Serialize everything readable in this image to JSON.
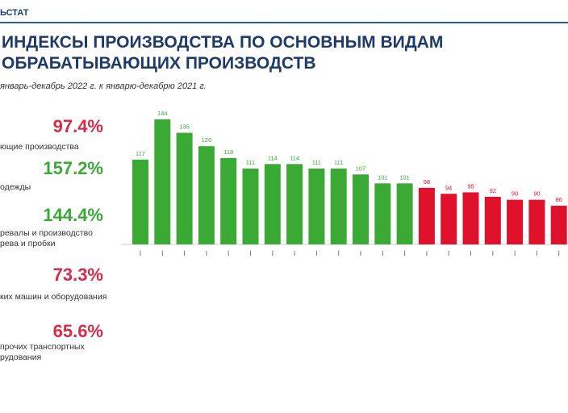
{
  "brand": "ЬСТАТ",
  "title_lines": [
    "ИНДЕКСЫ ПРОИЗВОДСТВА ПО ОСНОВНЫМ ВИДАМ",
    "ОБРАБАТЫВАЮЩИХ ПРОИЗВОДСТВ"
  ],
  "subtitle": "январь-декабрь 2022 г. к январю-декабрю 2021 г.",
  "colors": {
    "growth": "#3aaa35",
    "decline": "#e0112b",
    "title": "#1d3a6b",
    "accent_line": "#2a5da8"
  },
  "kpis": [
    {
      "value": "97.4%",
      "label_lines": [
        "ющие производства"
      ],
      "color": "#d42c4a"
    },
    {
      "value": "157.2%",
      "label_lines": [
        "одежды"
      ],
      "color": "#3aaa35"
    },
    {
      "value": "144.4%",
      "label_lines": [
        "ревалы и производство",
        "рева и пробки"
      ],
      "color": "#3aaa35"
    },
    {
      "value": "73.3%",
      "label_lines": [
        "ких машин и оборудования"
      ],
      "color": "#d42c4a"
    },
    {
      "value": "65.6%",
      "label_lines": [
        "прочих транспортных",
        "рудования"
      ],
      "color": "#d42c4a"
    }
  ],
  "chart_data": {
    "type": "bar",
    "categories": [
      "",
      "",
      "",
      "",
      "",
      "",
      "",
      "",
      "",
      "",
      "",
      "",
      "",
      "",
      "",
      "",
      "",
      "",
      "",
      ""
    ],
    "values": [
      117,
      144,
      135,
      126,
      118,
      111,
      114,
      114,
      111,
      111,
      107,
      101,
      101,
      98,
      94,
      95,
      92,
      90,
      90,
      86
    ],
    "data_labels": [
      "117",
      "144",
      "135",
      "126",
      "118",
      "111",
      "114",
      "114",
      "111",
      "111",
      "107",
      "101",
      "101",
      "98",
      "94",
      "95",
      "92",
      "90",
      "90",
      "86"
    ],
    "growth_count": 13,
    "grid": false,
    "legend": "none"
  }
}
